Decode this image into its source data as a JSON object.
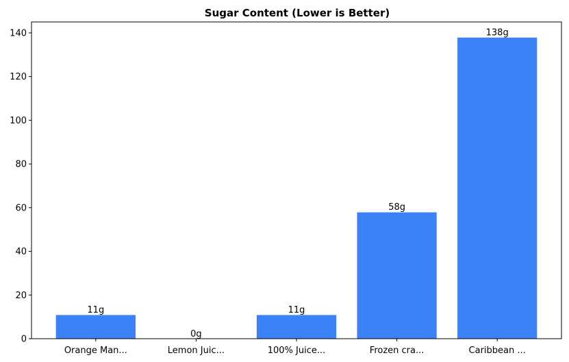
{
  "chart_data": {
    "type": "bar",
    "title": "Sugar Content (Lower is Better)",
    "xlabel": "",
    "ylabel": "",
    "categories": [
      "Orange Man...",
      "Lemon Juic...",
      "100% Juice...",
      "Frozen cra...",
      "Caribbean ..."
    ],
    "values": [
      11,
      0,
      11,
      58,
      138
    ],
    "data_labels": [
      "11g",
      "0g",
      "11g",
      "58g",
      "138g"
    ],
    "ylim": [
      0,
      145
    ],
    "yticks": [
      0,
      20,
      40,
      60,
      80,
      100,
      120,
      140
    ],
    "grid": false,
    "bar_color": "#3b82f6",
    "bar_edge_color": "#ffffff"
  }
}
